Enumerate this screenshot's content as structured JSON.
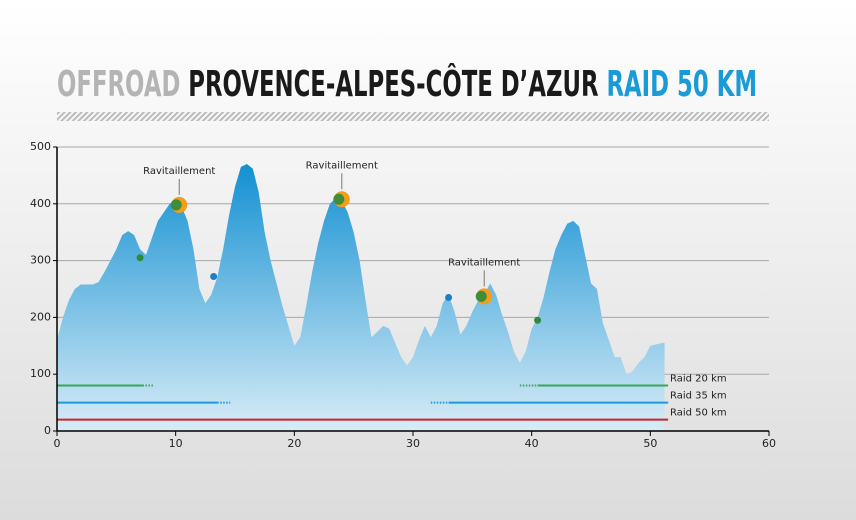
{
  "chart_data": {
    "type": "area",
    "title": {
      "part1": "OFFROAD",
      "part2": "PROVENCE-ALPES-CÔTE D’AZUR",
      "part3": "RAID 50 KM"
    },
    "title_colors": [
      "#b4b4b4",
      "#1a1a1a",
      "#1a9ad6"
    ],
    "xlim": [
      0,
      60
    ],
    "xticks": [
      0,
      10,
      20,
      30,
      40,
      50,
      60
    ],
    "ylim": [
      0,
      500
    ],
    "yticks": [
      0,
      100,
      200,
      300,
      400,
      500
    ],
    "grid": true,
    "color": "#1a9ad6",
    "x": [
      0,
      0.5,
      1,
      1.5,
      2,
      3,
      3.5,
      4,
      5,
      5.5,
      6,
      6.5,
      7,
      7.5,
      8,
      8.5,
      9,
      9.5,
      10,
      10.5,
      11,
      11.5,
      12,
      12.5,
      13,
      13.5,
      14,
      14.5,
      15,
      15.5,
      16,
      16.5,
      17,
      17.5,
      18,
      18.5,
      19,
      19.5,
      20,
      20.5,
      21,
      21.5,
      22,
      22.5,
      23,
      23.5,
      24,
      24.5,
      25,
      25.5,
      26,
      26.5,
      27,
      27.5,
      28,
      28.5,
      29,
      29.5,
      30,
      30.5,
      31,
      31.5,
      32,
      32.5,
      33,
      33.5,
      34,
      34.5,
      35,
      35.5,
      36,
      36.5,
      37,
      37.5,
      38,
      38.5,
      39,
      39.5,
      40,
      40.5,
      41,
      41.5,
      42,
      42.5,
      43,
      43.5,
      44,
      44.5,
      45,
      45.5,
      46,
      46.5,
      47,
      47.5,
      48,
      48.5,
      49,
      49.5,
      50,
      51,
      51.2
    ],
    "values": [
      160,
      200,
      230,
      250,
      258,
      258,
      262,
      280,
      320,
      345,
      352,
      345,
      320,
      310,
      340,
      370,
      385,
      400,
      405,
      395,
      370,
      320,
      250,
      225,
      240,
      270,
      320,
      380,
      430,
      465,
      470,
      462,
      420,
      350,
      300,
      260,
      220,
      185,
      150,
      165,
      220,
      280,
      330,
      370,
      400,
      410,
      405,
      385,
      350,
      300,
      230,
      165,
      175,
      185,
      180,
      155,
      130,
      115,
      130,
      160,
      185,
      165,
      185,
      225,
      240,
      210,
      170,
      185,
      210,
      230,
      240,
      260,
      240,
      205,
      175,
      140,
      120,
      140,
      180,
      200,
      235,
      280,
      320,
      345,
      365,
      370,
      360,
      310,
      260,
      250,
      190,
      160,
      130,
      130,
      100,
      105,
      120,
      130,
      150,
      155,
      155
    ],
    "markers": [
      {
        "x": 7,
        "y": 305,
        "color": "#2e8b3a"
      },
      {
        "x": 13.2,
        "y": 272,
        "color": "#1a7fc4"
      },
      {
        "x": 33,
        "y": 235,
        "color": "#1a7fc4"
      },
      {
        "x": 40.5,
        "y": 195,
        "color": "#2e8b3a"
      }
    ],
    "annotations": [
      {
        "x": 10.3,
        "y": 398,
        "label": "Ravitaillement"
      },
      {
        "x": 24,
        "y": 408,
        "label": "Ravitaillement"
      },
      {
        "x": 36,
        "y": 237,
        "label": "Ravitaillement"
      }
    ],
    "routes": [
      {
        "name": "Raid 20 km",
        "color": "#3aa655",
        "y": 80,
        "solid": [
          [
            0,
            7.2
          ],
          [
            40.5,
            51.5
          ]
        ],
        "dotted": [
          [
            7.2,
            8.2
          ],
          [
            39,
            40.5
          ]
        ]
      },
      {
        "name": "Raid 35 km",
        "color": "#1a9ad6",
        "y": 50,
        "solid": [
          [
            0,
            13.5
          ],
          [
            33,
            51.5
          ]
        ],
        "dotted": [
          [
            13.5,
            14.6
          ],
          [
            31.5,
            33
          ]
        ]
      },
      {
        "name": "Raid 50 km",
        "color": "#d0202e",
        "y": 20,
        "solid": [
          [
            0,
            51.5
          ]
        ],
        "dotted": []
      }
    ]
  }
}
